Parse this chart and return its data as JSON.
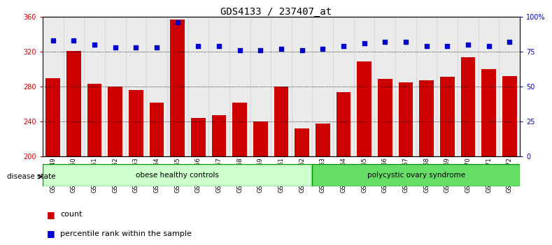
{
  "title": "GDS4133 / 237407_at",
  "samples": [
    "GSM201849",
    "GSM201850",
    "GSM201851",
    "GSM201852",
    "GSM201853",
    "GSM201854",
    "GSM201855",
    "GSM201856",
    "GSM201857",
    "GSM201858",
    "GSM201859",
    "GSM201861",
    "GSM201862",
    "GSM201863",
    "GSM201864",
    "GSM201865",
    "GSM201866",
    "GSM201867",
    "GSM201868",
    "GSM201869",
    "GSM201870",
    "GSM201871",
    "GSM201872"
  ],
  "counts": [
    290,
    321,
    283,
    280,
    276,
    262,
    357,
    244,
    247,
    262,
    240,
    280,
    232,
    238,
    274,
    309,
    289,
    285,
    287,
    291,
    314,
    300,
    292
  ],
  "percentiles": [
    83,
    83,
    80,
    78,
    78,
    78,
    96,
    79,
    79,
    76,
    76,
    77,
    76,
    77,
    79,
    81,
    82,
    82,
    79,
    79,
    80,
    79,
    82
  ],
  "ylim_left": [
    200,
    360
  ],
  "ylim_right": [
    0,
    100
  ],
  "yticks_left": [
    200,
    240,
    280,
    320,
    360
  ],
  "yticks_right": [
    0,
    25,
    50,
    75,
    100
  ],
  "yticklabels_right": [
    "0",
    "25",
    "50",
    "75",
    "100%"
  ],
  "bar_color": "#cc0000",
  "dot_color": "#0000cc",
  "group1_label": "obese healthy controls",
  "group2_label": "polycystic ovary syndrome",
  "group1_count": 13,
  "group2_count": 10,
  "disease_state_label": "disease state",
  "legend_count_label": "count",
  "legend_pct_label": "percentile rank within the sample",
  "group1_color": "#ccffcc",
  "group2_color": "#66dd66",
  "background_color": "#ffffff",
  "title_fontsize": 10,
  "tick_fontsize": 7,
  "label_fontsize": 8
}
